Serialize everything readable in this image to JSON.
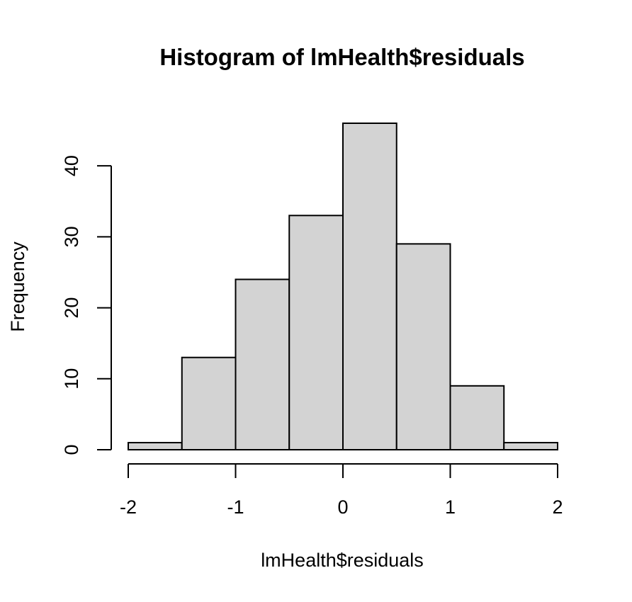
{
  "chart_data": {
    "type": "bar",
    "title": "Histogram of lmHealth$residuals",
    "xlabel": "lmHealth$residuals",
    "ylabel": "Frequency",
    "bins": [
      {
        "start": -2.0,
        "end": -1.5,
        "count": 1
      },
      {
        "start": -1.5,
        "end": -1.0,
        "count": 13
      },
      {
        "start": -1.0,
        "end": -0.5,
        "count": 24
      },
      {
        "start": -0.5,
        "end": 0.0,
        "count": 33
      },
      {
        "start": 0.0,
        "end": 0.5,
        "count": 46
      },
      {
        "start": 0.5,
        "end": 1.0,
        "count": 29
      },
      {
        "start": 1.0,
        "end": 1.5,
        "count": 9
      },
      {
        "start": 1.5,
        "end": 2.0,
        "count": 1
      }
    ],
    "xlim": [
      -2,
      2
    ],
    "ylim": [
      0,
      46
    ],
    "xticks": [
      -2,
      -1,
      0,
      1,
      2
    ],
    "xtick_labels": [
      "-2",
      "-1",
      "0",
      "1",
      "2"
    ],
    "yticks": [
      0,
      10,
      20,
      30,
      40
    ],
    "ytick_labels": [
      "0",
      "10",
      "20",
      "30",
      "40"
    ],
    "bar_color": "#d3d3d3",
    "edge_color": "#000000",
    "grid": false
  }
}
